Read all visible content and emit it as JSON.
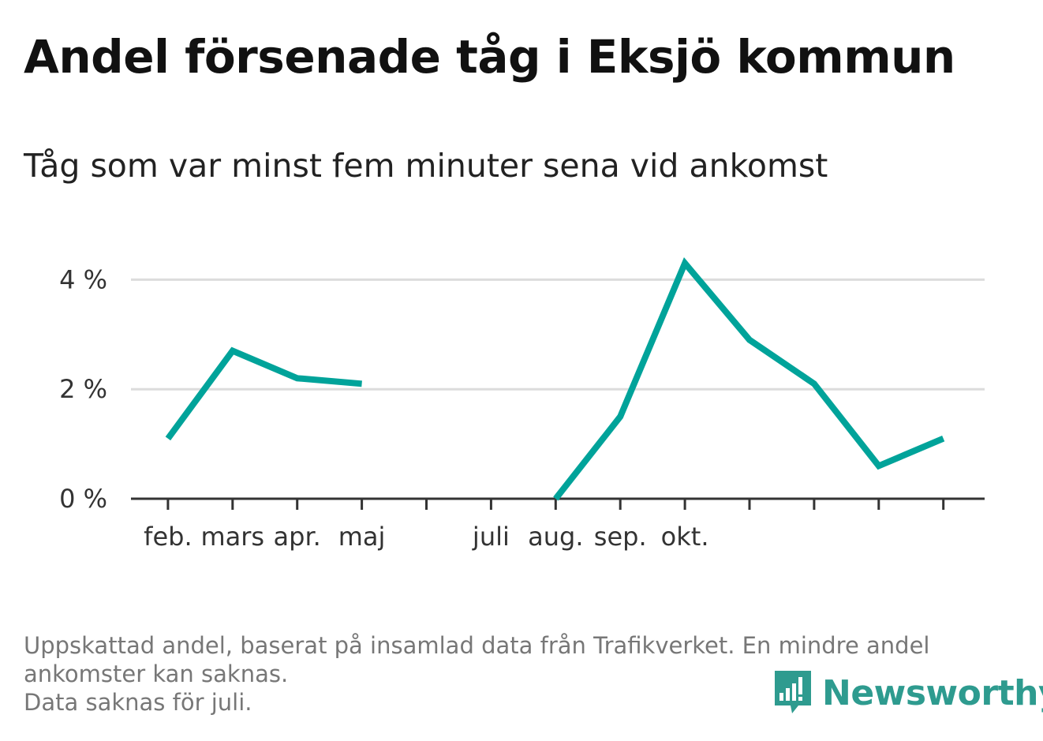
{
  "title": "Andel försenade tåg i Eksjö kommun",
  "subtitle": "Tåg som var minst fem minuter sena vid ankomst",
  "footnote": {
    "line1": "Uppskattad andel, baserat på insamlad data från Trafikverket. En mindre andel",
    "line2": "ankomster kan saknas.",
    "line3": "Data saknas för juli."
  },
  "logo": {
    "text": "Newsworthy",
    "color": "#2e9b8f"
  },
  "chart_data": {
    "type": "line",
    "title": "Andel försenade tåg i Eksjö kommun",
    "subtitle": "Tåg som var minst fem minuter sena vid ankomst",
    "xlabel": "",
    "ylabel": "",
    "categories": [
      "",
      "feb.",
      "mars",
      "apr.",
      "maj",
      "",
      "juli",
      "aug.",
      "sep.",
      "okt.",
      "",
      "",
      "",
      ""
    ],
    "x_tick_positions": [
      0,
      1,
      2,
      3,
      4,
      5,
      6,
      7,
      8,
      9,
      10,
      11,
      12,
      13
    ],
    "series": [
      {
        "color": "#00a39a",
        "values": [
          null,
          1.1,
          2.7,
          2.2,
          2.1,
          null,
          null,
          0.0,
          1.5,
          4.3,
          2.9,
          2.1,
          0.6,
          1.1
        ]
      }
    ],
    "yticks": [
      0,
      2,
      4
    ],
    "ytick_labels": [
      "0 %",
      "2 %",
      "4 %"
    ],
    "ylim": [
      0,
      4.4
    ],
    "grid": true,
    "legend": "none"
  }
}
